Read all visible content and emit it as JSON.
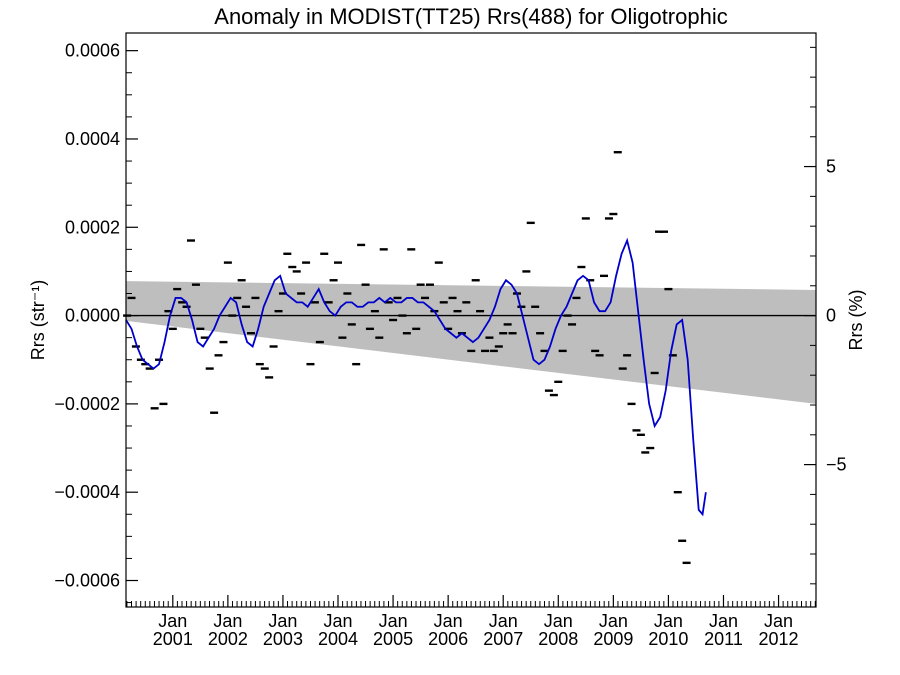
{
  "chart_data": {
    "type": "scatter",
    "title": "Anomaly in MODIST(TT25) Rrs(488) for Oligotrophic",
    "ylabel_left": "Rrs (str⁻¹)",
    "ylabel_right": "Rrs (%)",
    "xlabel": "",
    "x_tick_month_label": "Jan",
    "x_tick_years": [
      "2001",
      "2002",
      "2003",
      "2004",
      "2005",
      "2006",
      "2007",
      "2008",
      "2009",
      "2010",
      "2011",
      "2012"
    ],
    "x_range": [
      2000.15,
      2012.68
    ],
    "ylim_left": [
      -0.00066,
      0.00064
    ],
    "y_ticks_left": [
      {
        "value": 0.0006,
        "label": "0.0006"
      },
      {
        "value": 0.0004,
        "label": "0.0004"
      },
      {
        "value": 0.0002,
        "label": "0.0002"
      },
      {
        "value": 0.0,
        "label": "0.0000"
      },
      {
        "value": -0.0002,
        "label": "−0.0002"
      },
      {
        "value": -0.0004,
        "label": "−0.0004"
      },
      {
        "value": -0.0006,
        "label": "−0.0006"
      }
    ],
    "y_ticks_right": [
      {
        "value": 5,
        "label": "5"
      },
      {
        "value": 0,
        "label": "0"
      },
      {
        "value": -5,
        "label": "−5"
      }
    ],
    "right_axis_scale_rrs_per_percent": 6.75e-05,
    "zero_line": true,
    "uncertainty_band": {
      "upper": [
        [
          2000.15,
          7.8e-05
        ],
        [
          2012.68,
          5.8e-05
        ]
      ],
      "lower": [
        [
          2000.15,
          -1.2e-05
        ],
        [
          2012.68,
          -0.0002
        ]
      ],
      "color": "#bebebe"
    },
    "series": [
      {
        "style": "markers",
        "color": "#000000",
        "points": [
          [
            2000.17,
            0.0
          ],
          [
            2000.25,
            4e-05
          ],
          [
            2000.33,
            -7e-05
          ],
          [
            2000.42,
            -0.0001
          ],
          [
            2000.5,
            -0.00011
          ],
          [
            2000.58,
            -0.00012
          ],
          [
            2000.67,
            -0.00021
          ],
          [
            2000.75,
            -0.0001
          ],
          [
            2000.83,
            -0.0002
          ],
          [
            2000.92,
            1e-05
          ],
          [
            2001.0,
            -3e-05
          ],
          [
            2001.08,
            6e-05
          ],
          [
            2001.17,
            3e-05
          ],
          [
            2001.25,
            2e-05
          ],
          [
            2001.33,
            0.00017
          ],
          [
            2001.42,
            7e-05
          ],
          [
            2001.5,
            -3e-05
          ],
          [
            2001.58,
            -5e-05
          ],
          [
            2001.67,
            -0.00012
          ],
          [
            2001.75,
            -0.00022
          ],
          [
            2001.83,
            -9e-05
          ],
          [
            2001.92,
            -6e-05
          ],
          [
            2002.0,
            0.00012
          ],
          [
            2002.08,
            0.0
          ],
          [
            2002.17,
            4e-05
          ],
          [
            2002.25,
            8e-05
          ],
          [
            2002.33,
            2e-05
          ],
          [
            2002.42,
            -4e-05
          ],
          [
            2002.5,
            4e-05
          ],
          [
            2002.58,
            -0.00011
          ],
          [
            2002.67,
            -0.00012
          ],
          [
            2002.75,
            -0.00014
          ],
          [
            2002.83,
            -7e-05
          ],
          [
            2002.92,
            1e-05
          ],
          [
            2003.0,
            5e-05
          ],
          [
            2003.08,
            0.00014
          ],
          [
            2003.17,
            0.00011
          ],
          [
            2003.25,
            0.0001
          ],
          [
            2003.33,
            5e-05
          ],
          [
            2003.42,
            0.00012
          ],
          [
            2003.5,
            -0.00011
          ],
          [
            2003.58,
            3e-05
          ],
          [
            2003.67,
            -6e-05
          ],
          [
            2003.75,
            0.00014
          ],
          [
            2003.83,
            3e-05
          ],
          [
            2003.92,
            8e-05
          ],
          [
            2004.0,
            0.00012
          ],
          [
            2004.08,
            -5e-05
          ],
          [
            2004.17,
            5e-05
          ],
          [
            2004.25,
            -2e-05
          ],
          [
            2004.33,
            -0.00011
          ],
          [
            2004.42,
            0.00016
          ],
          [
            2004.5,
            7e-05
          ],
          [
            2004.58,
            -3e-05
          ],
          [
            2004.67,
            1e-05
          ],
          [
            2004.75,
            -5e-05
          ],
          [
            2004.83,
            0.00015
          ],
          [
            2004.92,
            3e-05
          ],
          [
            2005.0,
            -1e-05
          ],
          [
            2005.08,
            4e-05
          ],
          [
            2005.17,
            0.0
          ],
          [
            2005.25,
            -4e-05
          ],
          [
            2005.33,
            0.00015
          ],
          [
            2005.42,
            -3e-05
          ],
          [
            2005.5,
            7e-05
          ],
          [
            2005.58,
            4e-05
          ],
          [
            2005.67,
            7e-05
          ],
          [
            2005.75,
            1e-05
          ],
          [
            2005.83,
            0.00012
          ],
          [
            2005.92,
            3e-05
          ],
          [
            2006.0,
            -3e-05
          ],
          [
            2006.08,
            4e-05
          ],
          [
            2006.17,
            1e-05
          ],
          [
            2006.25,
            -4e-05
          ],
          [
            2006.33,
            3e-05
          ],
          [
            2006.42,
            -8e-05
          ],
          [
            2006.5,
            8e-05
          ],
          [
            2006.58,
            1e-05
          ],
          [
            2006.67,
            -8e-05
          ],
          [
            2006.75,
            -5e-05
          ],
          [
            2006.83,
            -8e-05
          ],
          [
            2006.92,
            -7e-05
          ],
          [
            2007.0,
            -4e-05
          ],
          [
            2007.08,
            -2e-05
          ],
          [
            2007.17,
            -4e-05
          ],
          [
            2007.25,
            5e-05
          ],
          [
            2007.33,
            2e-05
          ],
          [
            2007.42,
            0.0001
          ],
          [
            2007.5,
            0.00021
          ],
          [
            2007.58,
            2e-05
          ],
          [
            2007.67,
            -4e-05
          ],
          [
            2007.75,
            -8e-05
          ],
          [
            2007.83,
            -0.00017
          ],
          [
            2007.92,
            -0.00018
          ],
          [
            2008.0,
            -0.00015
          ],
          [
            2008.08,
            -8e-05
          ],
          [
            2008.17,
            0.0
          ],
          [
            2008.25,
            -2e-05
          ],
          [
            2008.33,
            4e-05
          ],
          [
            2008.42,
            0.00011
          ],
          [
            2008.5,
            0.00022
          ],
          [
            2008.58,
            8e-05
          ],
          [
            2008.67,
            -8e-05
          ],
          [
            2008.75,
            -9e-05
          ],
          [
            2008.83,
            9e-05
          ],
          [
            2008.92,
            0.00022
          ],
          [
            2009.0,
            0.00023
          ],
          [
            2009.08,
            0.00037
          ],
          [
            2009.17,
            -0.00012
          ],
          [
            2009.25,
            -9e-05
          ],
          [
            2009.33,
            -0.0002
          ],
          [
            2009.42,
            -0.00026
          ],
          [
            2009.5,
            -0.00027
          ],
          [
            2009.58,
            -0.00031
          ],
          [
            2009.67,
            -0.0003
          ],
          [
            2009.75,
            -0.00013
          ],
          [
            2009.83,
            0.00019
          ],
          [
            2009.92,
            0.00019
          ],
          [
            2010.0,
            6e-05
          ],
          [
            2010.08,
            -9e-05
          ],
          [
            2010.17,
            -0.0004
          ],
          [
            2010.25,
            -0.00051
          ],
          [
            2010.33,
            -0.00056
          ]
        ]
      },
      {
        "style": "line",
        "color": "#0000cc",
        "points": [
          [
            2000.15,
            -1e-05
          ],
          [
            2000.25,
            -3e-05
          ],
          [
            2000.35,
            -7e-05
          ],
          [
            2000.45,
            -0.0001
          ],
          [
            2000.55,
            -0.00011
          ],
          [
            2000.65,
            -0.00012
          ],
          [
            2000.75,
            -0.00011
          ],
          [
            2000.85,
            -6e-05
          ],
          [
            2000.95,
            0.0
          ],
          [
            2001.05,
            4e-05
          ],
          [
            2001.15,
            4e-05
          ],
          [
            2001.25,
            3e-05
          ],
          [
            2001.35,
            -1e-05
          ],
          [
            2001.45,
            -6e-05
          ],
          [
            2001.55,
            -7e-05
          ],
          [
            2001.65,
            -5e-05
          ],
          [
            2001.75,
            -3e-05
          ],
          [
            2001.85,
            0.0
          ],
          [
            2001.95,
            2e-05
          ],
          [
            2002.05,
            4e-05
          ],
          [
            2002.15,
            3e-05
          ],
          [
            2002.25,
            -2e-05
          ],
          [
            2002.35,
            -6e-05
          ],
          [
            2002.45,
            -7e-05
          ],
          [
            2002.55,
            -3e-05
          ],
          [
            2002.65,
            2e-05
          ],
          [
            2002.75,
            5e-05
          ],
          [
            2002.85,
            8e-05
          ],
          [
            2002.95,
            9e-05
          ],
          [
            2003.05,
            5e-05
          ],
          [
            2003.15,
            4e-05
          ],
          [
            2003.25,
            3e-05
          ],
          [
            2003.35,
            3e-05
          ],
          [
            2003.45,
            2e-05
          ],
          [
            2003.55,
            4e-05
          ],
          [
            2003.65,
            6e-05
          ],
          [
            2003.75,
            3e-05
          ],
          [
            2003.85,
            1e-05
          ],
          [
            2003.95,
            0.0
          ],
          [
            2004.05,
            2e-05
          ],
          [
            2004.15,
            3e-05
          ],
          [
            2004.25,
            3e-05
          ],
          [
            2004.35,
            2e-05
          ],
          [
            2004.45,
            2e-05
          ],
          [
            2004.55,
            3e-05
          ],
          [
            2004.65,
            3e-05
          ],
          [
            2004.75,
            4e-05
          ],
          [
            2004.85,
            3e-05
          ],
          [
            2004.95,
            4e-05
          ],
          [
            2005.05,
            3e-05
          ],
          [
            2005.15,
            3e-05
          ],
          [
            2005.25,
            4e-05
          ],
          [
            2005.35,
            4e-05
          ],
          [
            2005.45,
            3e-05
          ],
          [
            2005.55,
            3e-05
          ],
          [
            2005.65,
            2e-05
          ],
          [
            2005.75,
            1e-05
          ],
          [
            2005.85,
            -1e-05
          ],
          [
            2005.95,
            -3e-05
          ],
          [
            2006.05,
            -4e-05
          ],
          [
            2006.15,
            -5e-05
          ],
          [
            2006.25,
            -4e-05
          ],
          [
            2006.35,
            -5e-05
          ],
          [
            2006.45,
            -6e-05
          ],
          [
            2006.55,
            -5e-05
          ],
          [
            2006.65,
            -3e-05
          ],
          [
            2006.75,
            -1e-05
          ],
          [
            2006.85,
            2e-05
          ],
          [
            2006.95,
            6e-05
          ],
          [
            2007.05,
            8e-05
          ],
          [
            2007.15,
            7e-05
          ],
          [
            2007.25,
            5e-05
          ],
          [
            2007.35,
            0.0
          ],
          [
            2007.45,
            -5e-05
          ],
          [
            2007.55,
            -0.0001
          ],
          [
            2007.65,
            -0.00011
          ],
          [
            2007.75,
            -0.0001
          ],
          [
            2007.85,
            -7e-05
          ],
          [
            2007.95,
            -3e-05
          ],
          [
            2008.05,
            0.0
          ],
          [
            2008.15,
            2e-05
          ],
          [
            2008.25,
            5e-05
          ],
          [
            2008.35,
            8e-05
          ],
          [
            2008.45,
            9e-05
          ],
          [
            2008.55,
            8e-05
          ],
          [
            2008.65,
            3e-05
          ],
          [
            2008.75,
            1e-05
          ],
          [
            2008.85,
            1e-05
          ],
          [
            2008.95,
            3e-05
          ],
          [
            2009.05,
            9e-05
          ],
          [
            2009.15,
            0.00014
          ],
          [
            2009.25,
            0.00017
          ],
          [
            2009.35,
            0.00012
          ],
          [
            2009.45,
            1e-05
          ],
          [
            2009.55,
            -0.0001
          ],
          [
            2009.65,
            -0.0002
          ],
          [
            2009.75,
            -0.00025
          ],
          [
            2009.85,
            -0.00023
          ],
          [
            2009.95,
            -0.00017
          ],
          [
            2010.05,
            -8e-05
          ],
          [
            2010.15,
            -2e-05
          ],
          [
            2010.25,
            -1e-05
          ],
          [
            2010.35,
            -0.0001
          ],
          [
            2010.45,
            -0.00028
          ],
          [
            2010.55,
            -0.00044
          ],
          [
            2010.62,
            -0.00045
          ],
          [
            2010.68,
            -0.0004
          ]
        ]
      }
    ]
  }
}
